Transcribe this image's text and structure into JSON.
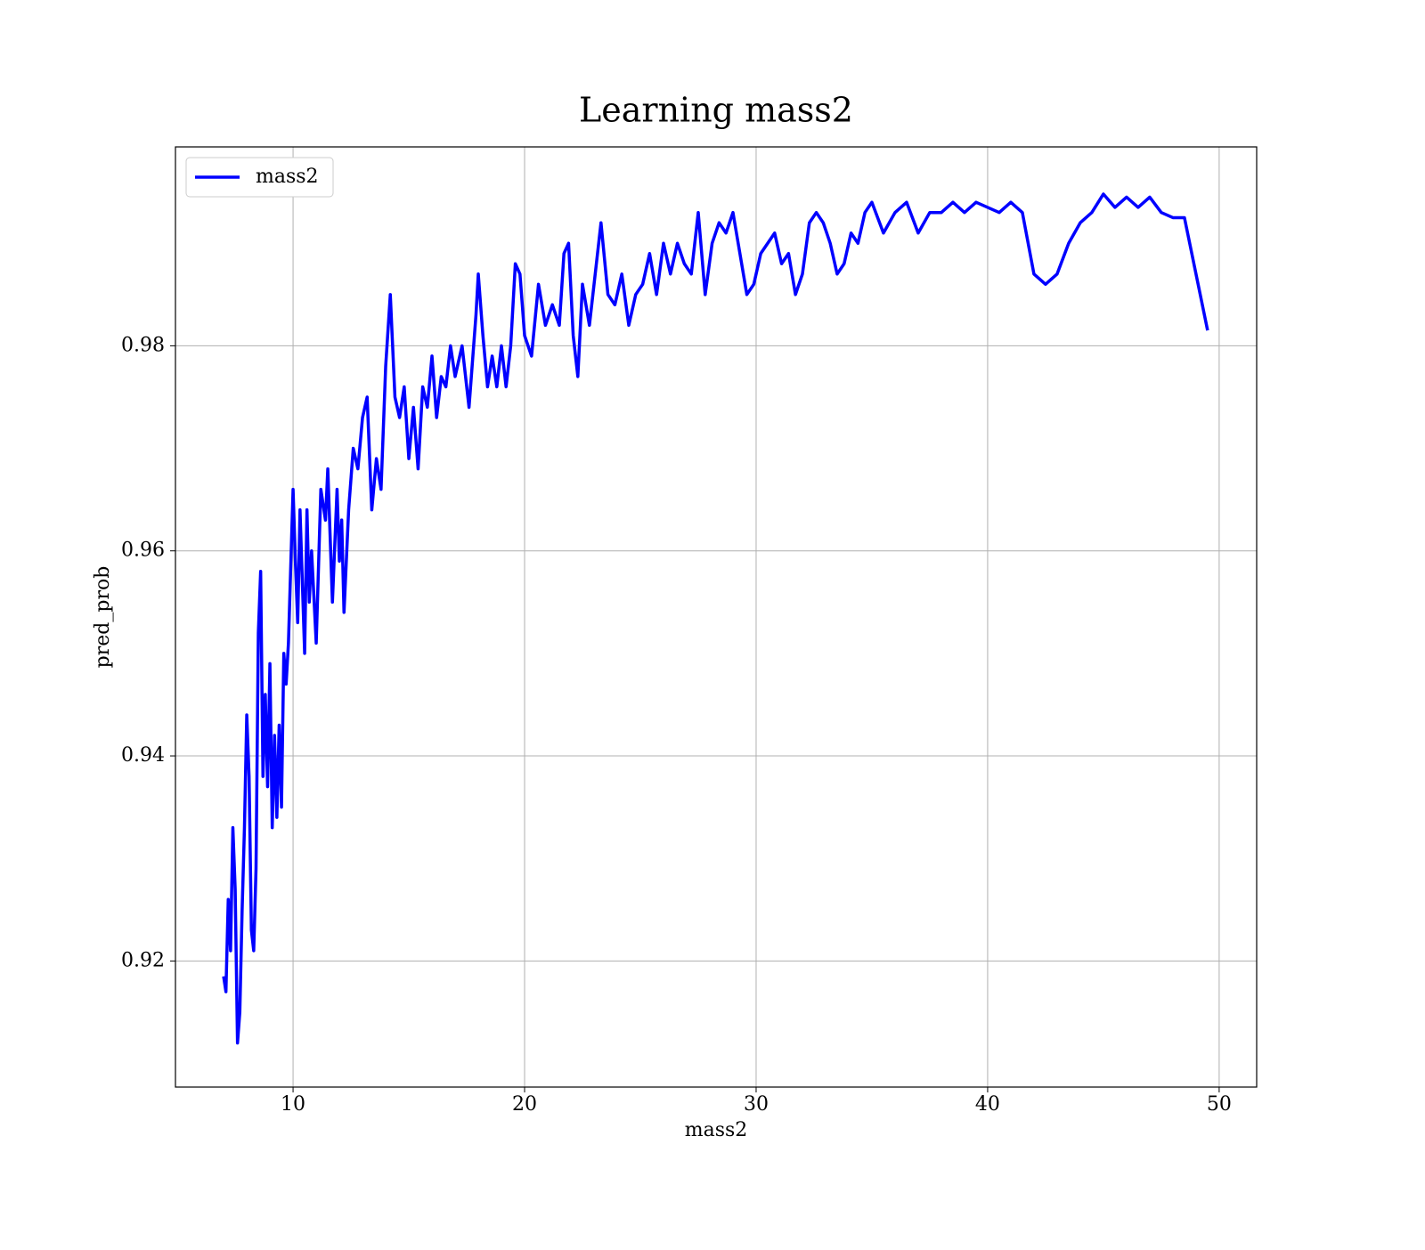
{
  "chart_data": {
    "type": "line",
    "title": "Learning mass2",
    "xlabel": "mass2",
    "ylabel": "pred_prob",
    "x": [
      7.0,
      7.1,
      7.2,
      7.3,
      7.4,
      7.5,
      7.6,
      7.7,
      7.8,
      7.9,
      8.0,
      8.1,
      8.2,
      8.3,
      8.4,
      8.5,
      8.6,
      8.7,
      8.8,
      8.9,
      9.0,
      9.1,
      9.2,
      9.3,
      9.4,
      9.5,
      9.6,
      9.7,
      9.8,
      10.0,
      10.1,
      10.2,
      10.3,
      10.4,
      10.5,
      10.6,
      10.7,
      10.8,
      11.0,
      11.2,
      11.4,
      11.5,
      11.7,
      11.9,
      12.0,
      12.1,
      12.2,
      12.4,
      12.6,
      12.8,
      13.0,
      13.2,
      13.4,
      13.6,
      13.8,
      14.0,
      14.2,
      14.4,
      14.6,
      14.8,
      15.0,
      15.2,
      15.4,
      15.6,
      15.8,
      16.0,
      16.2,
      16.4,
      16.6,
      16.8,
      17.0,
      17.3,
      17.6,
      17.9,
      18.0,
      18.2,
      18.4,
      18.6,
      18.8,
      19.0,
      19.2,
      19.4,
      19.6,
      19.8,
      20.0,
      20.3,
      20.6,
      20.9,
      21.2,
      21.5,
      21.7,
      21.9,
      22.1,
      22.3,
      22.5,
      22.8,
      23.0,
      23.3,
      23.6,
      23.9,
      24.2,
      24.5,
      24.8,
      25.1,
      25.4,
      25.7,
      26.0,
      26.3,
      26.6,
      26.9,
      27.2,
      27.5,
      27.8,
      28.1,
      28.4,
      28.7,
      29.0,
      29.3,
      29.6,
      29.9,
      30.2,
      30.5,
      30.8,
      31.1,
      31.4,
      31.7,
      32.0,
      32.3,
      32.6,
      32.9,
      33.2,
      33.5,
      33.8,
      34.1,
      34.4,
      34.7,
      35.0,
      35.5,
      36.0,
      36.5,
      37.0,
      37.5,
      38.0,
      38.5,
      39.0,
      39.5,
      40.0,
      40.5,
      41.0,
      41.5,
      42.0,
      42.5,
      43.0,
      43.5,
      44.0,
      44.5,
      45.0,
      45.5,
      46.0,
      46.5,
      47.0,
      47.5,
      48.0,
      48.5,
      49.5
    ],
    "series": [
      {
        "name": "mass2",
        "color": "#0000ff",
        "values": [
          0.9185,
          0.917,
          0.926,
          0.921,
          0.933,
          0.927,
          0.912,
          0.915,
          0.925,
          0.933,
          0.944,
          0.938,
          0.923,
          0.921,
          0.929,
          0.952,
          0.958,
          0.938,
          0.946,
          0.937,
          0.949,
          0.933,
          0.942,
          0.934,
          0.943,
          0.935,
          0.95,
          0.947,
          0.951,
          0.966,
          0.959,
          0.953,
          0.964,
          0.957,
          0.95,
          0.964,
          0.955,
          0.96,
          0.951,
          0.966,
          0.963,
          0.968,
          0.955,
          0.966,
          0.959,
          0.963,
          0.954,
          0.964,
          0.97,
          0.968,
          0.973,
          0.975,
          0.964,
          0.969,
          0.966,
          0.978,
          0.985,
          0.975,
          0.973,
          0.976,
          0.969,
          0.974,
          0.968,
          0.976,
          0.974,
          0.979,
          0.973,
          0.977,
          0.976,
          0.98,
          0.977,
          0.98,
          0.974,
          0.983,
          0.987,
          0.981,
          0.976,
          0.979,
          0.976,
          0.98,
          0.976,
          0.98,
          0.988,
          0.987,
          0.981,
          0.979,
          0.986,
          0.982,
          0.984,
          0.982,
          0.989,
          0.99,
          0.981,
          0.977,
          0.986,
          0.982,
          0.986,
          0.992,
          0.985,
          0.984,
          0.987,
          0.982,
          0.985,
          0.986,
          0.989,
          0.985,
          0.99,
          0.987,
          0.99,
          0.988,
          0.987,
          0.993,
          0.985,
          0.99,
          0.992,
          0.991,
          0.993,
          0.989,
          0.985,
          0.986,
          0.989,
          0.99,
          0.991,
          0.988,
          0.989,
          0.985,
          0.987,
          0.992,
          0.993,
          0.992,
          0.99,
          0.987,
          0.988,
          0.991,
          0.99,
          0.993,
          0.994,
          0.991,
          0.993,
          0.994,
          0.991,
          0.993,
          0.993,
          0.994,
          0.993,
          0.994,
          0.9935,
          0.993,
          0.994,
          0.993,
          0.987,
          0.986,
          0.987,
          0.99,
          0.992,
          0.993,
          0.9948,
          0.9935,
          0.9945,
          0.9935,
          0.9945,
          0.993,
          0.9925,
          0.9925,
          0.9815
        ]
      }
    ],
    "xlim": [
      4.92,
      51.62
    ],
    "ylim": [
      0.9077,
      0.9994
    ],
    "xticks": [
      10,
      20,
      30,
      40,
      50
    ],
    "yticks": [
      0.92,
      0.94,
      0.96,
      0.98
    ],
    "grid": true,
    "legend": "upper left"
  }
}
